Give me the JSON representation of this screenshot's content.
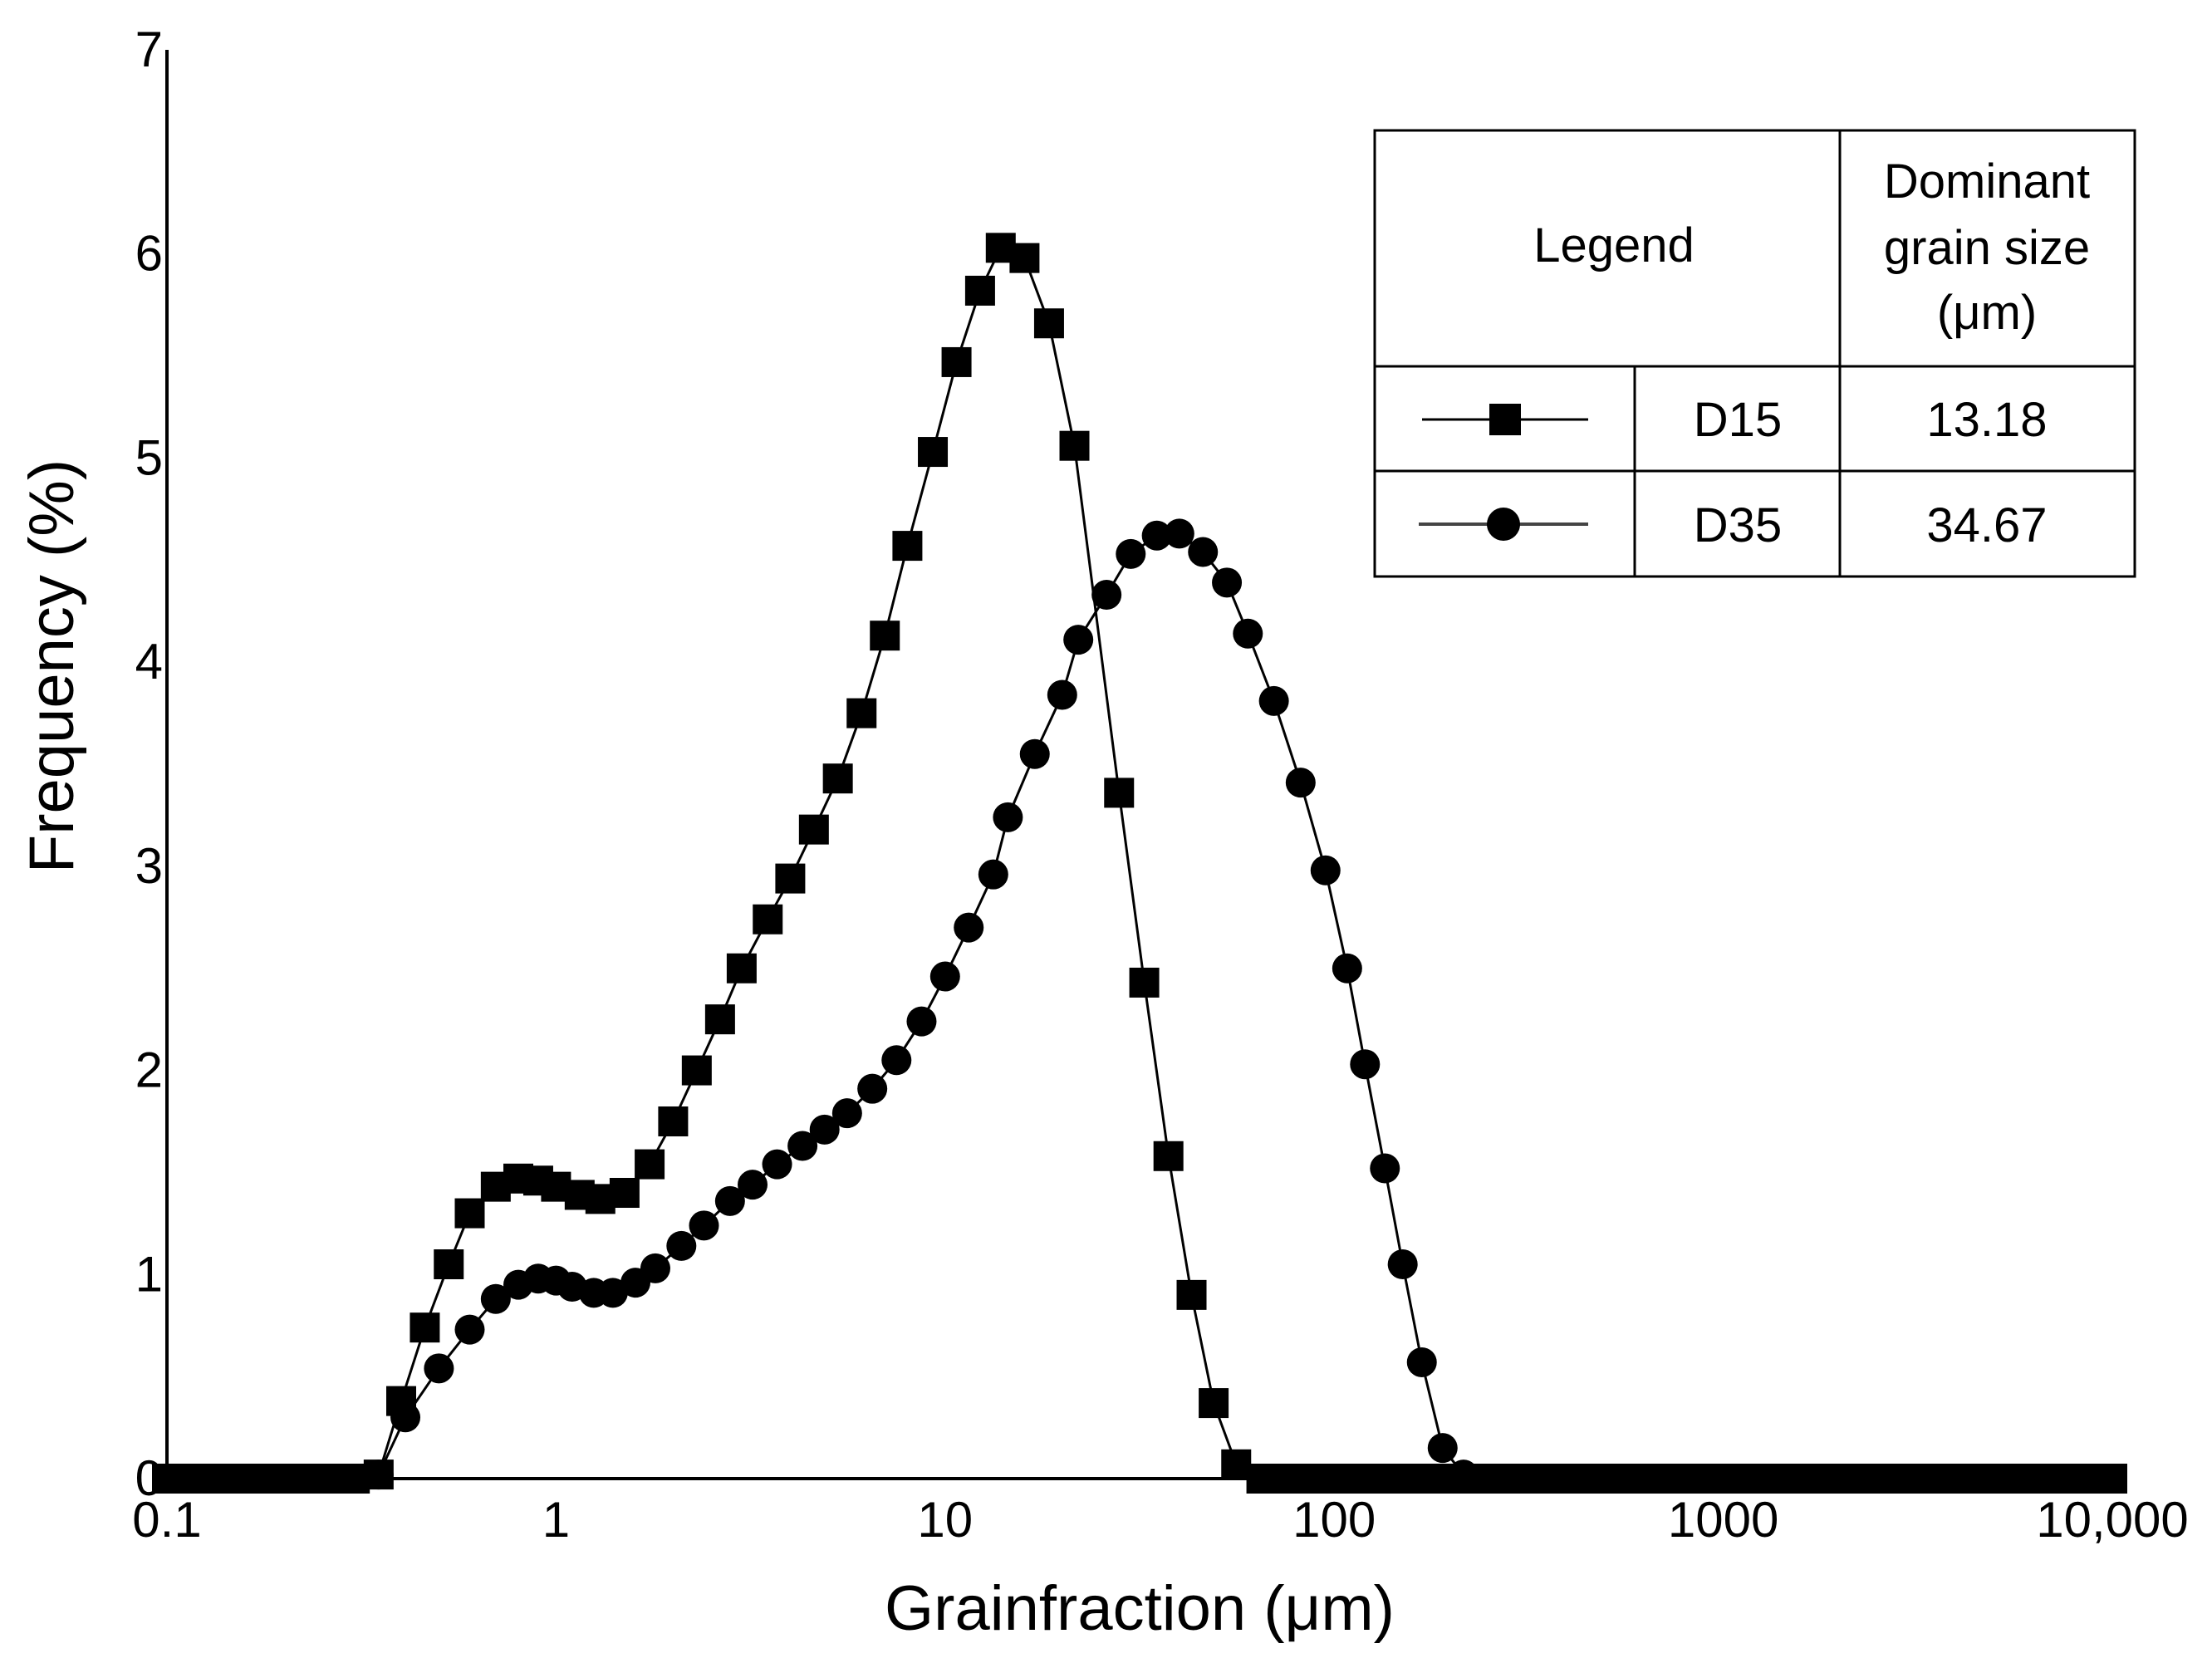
{
  "chart_data": {
    "type": "scatter",
    "xlabel": "Grainfraction (μm)",
    "ylabel": "Frequency (%)",
    "x_scale": "log",
    "xlim": [
      0.1,
      10000
    ],
    "ylim": [
      0,
      7
    ],
    "x_ticks": [
      0.1,
      1,
      10,
      100,
      1000,
      10000
    ],
    "x_tick_labels": [
      "0.1",
      "1",
      "10",
      "100",
      "1000",
      "10,000"
    ],
    "y_ticks": [
      0,
      1,
      2,
      3,
      4,
      5,
      6,
      7
    ],
    "y_tick_labels": [
      "0",
      "1",
      "2",
      "3",
      "4",
      "5",
      "6",
      "7"
    ],
    "grid": false,
    "legend_placement": "top-right",
    "legend_table": {
      "header_legend": "Legend",
      "header_size": [
        "Dominant",
        "grain size",
        "(μm)"
      ],
      "rows": [
        {
          "name": "D15",
          "marker": "square",
          "value": "13.18"
        },
        {
          "name": "D35",
          "marker": "circle",
          "value": "34.67"
        }
      ]
    },
    "series": [
      {
        "name": "D15",
        "marker": "square",
        "color": "#000000",
        "points": [
          [
            0.1,
            0
          ],
          [
            0.115,
            0
          ],
          [
            0.132,
            0
          ],
          [
            0.152,
            0
          ],
          [
            0.175,
            0
          ],
          [
            0.2,
            0
          ],
          [
            0.23,
            0
          ],
          [
            0.264,
            0
          ],
          [
            0.304,
            0
          ],
          [
            0.35,
            0.02
          ],
          [
            0.4,
            0.38
          ],
          [
            0.46,
            0.74
          ],
          [
            0.53,
            1.05
          ],
          [
            0.6,
            1.3
          ],
          [
            0.7,
            1.43
          ],
          [
            0.8,
            1.47
          ],
          [
            0.9,
            1.46
          ],
          [
            1.0,
            1.43
          ],
          [
            1.15,
            1.39
          ],
          [
            1.3,
            1.37
          ],
          [
            1.5,
            1.4
          ],
          [
            1.74,
            1.54
          ],
          [
            2.0,
            1.75
          ],
          [
            2.3,
            2.0
          ],
          [
            2.64,
            2.25
          ],
          [
            3.0,
            2.5
          ],
          [
            3.5,
            2.74
          ],
          [
            4.0,
            2.94
          ],
          [
            4.6,
            3.18
          ],
          [
            5.3,
            3.43
          ],
          [
            6.1,
            3.75
          ],
          [
            7.0,
            4.13
          ],
          [
            8.0,
            4.57
          ],
          [
            9.3,
            5.03
          ],
          [
            10.7,
            5.47
          ],
          [
            12.3,
            5.82
          ],
          [
            13.9,
            6.03
          ],
          [
            16.0,
            5.98
          ],
          [
            18.5,
            5.66
          ],
          [
            21.5,
            5.06
          ],
          [
            28.0,
            3.36
          ],
          [
            32.5,
            2.43
          ],
          [
            37.5,
            1.58
          ],
          [
            43.0,
            0.9
          ],
          [
            49.0,
            0.37
          ],
          [
            56.0,
            0.07
          ],
          [
            65,
            0
          ],
          [
            75,
            0
          ],
          [
            86,
            0
          ],
          [
            100,
            0
          ],
          [
            115,
            0
          ],
          [
            132,
            0
          ],
          [
            152,
            0
          ],
          [
            175,
            0
          ],
          [
            200,
            0
          ],
          [
            230,
            0
          ],
          [
            265,
            0
          ],
          [
            305,
            0
          ],
          [
            350,
            0
          ],
          [
            400,
            0
          ],
          [
            460,
            0
          ],
          [
            530,
            0
          ],
          [
            610,
            0
          ],
          [
            700,
            0
          ],
          [
            800,
            0
          ],
          [
            925,
            0
          ],
          [
            1060,
            0
          ],
          [
            1220,
            0
          ],
          [
            1400,
            0
          ],
          [
            1610,
            0
          ],
          [
            1850,
            0
          ],
          [
            2130,
            0
          ],
          [
            2450,
            0
          ],
          [
            2820,
            0
          ],
          [
            3240,
            0
          ],
          [
            3730,
            0
          ],
          [
            4290,
            0
          ],
          [
            4930,
            0
          ],
          [
            5670,
            0
          ],
          [
            6520,
            0
          ],
          [
            7500,
            0
          ],
          [
            8630,
            0
          ],
          [
            10000,
            0
          ]
        ]
      },
      {
        "name": "D35",
        "marker": "circle",
        "color": "#000000",
        "points": [
          [
            0.1,
            0
          ],
          [
            0.115,
            0
          ],
          [
            0.132,
            0
          ],
          [
            0.152,
            0
          ],
          [
            0.175,
            0
          ],
          [
            0.2,
            0
          ],
          [
            0.23,
            0
          ],
          [
            0.264,
            0
          ],
          [
            0.304,
            0
          ],
          [
            0.35,
            0.02
          ],
          [
            0.41,
            0.3
          ],
          [
            0.5,
            0.54
          ],
          [
            0.6,
            0.73
          ],
          [
            0.7,
            0.88
          ],
          [
            0.8,
            0.95
          ],
          [
            0.9,
            0.98
          ],
          [
            1.0,
            0.97
          ],
          [
            1.1,
            0.94
          ],
          [
            1.25,
            0.91
          ],
          [
            1.4,
            0.91
          ],
          [
            1.6,
            0.96
          ],
          [
            1.8,
            1.03
          ],
          [
            2.1,
            1.14
          ],
          [
            2.4,
            1.24
          ],
          [
            2.8,
            1.36
          ],
          [
            3.2,
            1.44
          ],
          [
            3.7,
            1.54
          ],
          [
            4.3,
            1.63
          ],
          [
            4.9,
            1.71
          ],
          [
            5.6,
            1.79
          ],
          [
            6.5,
            1.91
          ],
          [
            7.5,
            2.05
          ],
          [
            8.7,
            2.24
          ],
          [
            10.0,
            2.46
          ],
          [
            11.5,
            2.7
          ],
          [
            13.3,
            2.96
          ],
          [
            14.5,
            3.24
          ],
          [
            17.0,
            3.55
          ],
          [
            20.0,
            3.84
          ],
          [
            22.0,
            4.11
          ],
          [
            26.0,
            4.33
          ],
          [
            30.0,
            4.53
          ],
          [
            35.0,
            4.62
          ],
          [
            40.0,
            4.63
          ],
          [
            46.0,
            4.54
          ],
          [
            53.0,
            4.39
          ],
          [
            60.0,
            4.14
          ],
          [
            70.0,
            3.81
          ],
          [
            82.0,
            3.41
          ],
          [
            95.0,
            2.98
          ],
          [
            108.0,
            2.5
          ],
          [
            120.0,
            2.03
          ],
          [
            135.0,
            1.52
          ],
          [
            150.0,
            1.05
          ],
          [
            168.0,
            0.57
          ],
          [
            190.0,
            0.15
          ],
          [
            215.0,
            0.02
          ],
          [
            250,
            0
          ],
          [
            290,
            0
          ],
          [
            340,
            0
          ],
          [
            400,
            0
          ],
          [
            470,
            0
          ],
          [
            550,
            0
          ],
          [
            640,
            0
          ],
          [
            750,
            0
          ],
          [
            880,
            0
          ],
          [
            1030,
            0
          ],
          [
            1210,
            0
          ],
          [
            1420,
            0
          ],
          [
            1660,
            0
          ],
          [
            1950,
            0
          ],
          [
            2280,
            0
          ],
          [
            2670,
            0
          ],
          [
            3130,
            0
          ],
          [
            3670,
            0
          ],
          [
            4300,
            0
          ],
          [
            5040,
            0
          ],
          [
            5900,
            0
          ],
          [
            6920,
            0
          ],
          [
            8110,
            0
          ],
          [
            9500,
            0
          ],
          [
            10000,
            0
          ]
        ]
      }
    ]
  }
}
